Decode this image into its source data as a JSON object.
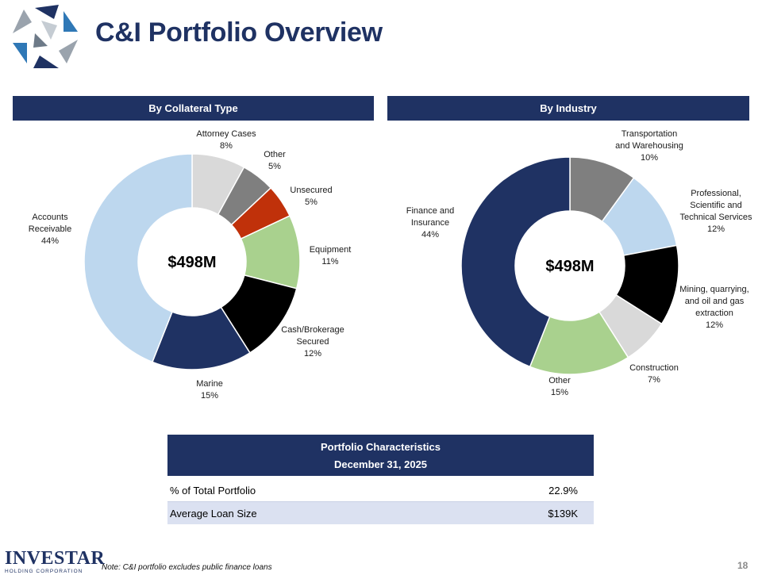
{
  "header": {
    "title": "C&I Portfolio Overview"
  },
  "sections": {
    "left_title": "By Collateral Type",
    "right_title": "By Industry"
  },
  "chart_data": [
    {
      "type": "pie",
      "title": "By Collateral Type",
      "center_label": "$498M",
      "slices": [
        {
          "name": "Attorney Cases",
          "lines": [
            "Attorney Cases",
            "8%"
          ],
          "value": 8,
          "color": "#d9d9d9"
        },
        {
          "name": "Other",
          "lines": [
            "Other",
            "5%"
          ],
          "value": 5,
          "color": "#7f7f7f"
        },
        {
          "name": "Unsecured",
          "lines": [
            "Unsecured",
            "5%"
          ],
          "value": 5,
          "color": "#c0310a"
        },
        {
          "name": "Equipment",
          "lines": [
            "Equipment",
            "11%"
          ],
          "value": 11,
          "color": "#a9d18e"
        },
        {
          "name": "Cash/Brokerage Secured",
          "lines": [
            "Cash/Brokerage",
            "Secured",
            "12%"
          ],
          "value": 12,
          "color": "#000000"
        },
        {
          "name": "Marine",
          "lines": [
            "Marine",
            "15%"
          ],
          "value": 15,
          "color": "#1f3263"
        },
        {
          "name": "Accounts Receivable",
          "lines": [
            "Accounts",
            "Receivable",
            "44%"
          ],
          "value": 44,
          "color": "#bdd7ee"
        }
      ]
    },
    {
      "type": "pie",
      "title": "By Industry",
      "center_label": "$498M",
      "slices": [
        {
          "name": "Transportation and Warehousing",
          "lines": [
            "Transportation",
            "and Warehousing",
            "10%"
          ],
          "value": 10,
          "color": "#7f7f7f"
        },
        {
          "name": "Professional, Scientific and Technical Services",
          "lines": [
            "Professional,",
            "Scientific and",
            "Technical Services",
            "12%"
          ],
          "value": 12,
          "color": "#bdd7ee"
        },
        {
          "name": "Mining, quarrying, and oil and gas extraction",
          "lines": [
            "Mining, quarrying,",
            "and oil and gas",
            "extraction",
            "12%"
          ],
          "value": 12,
          "color": "#000000"
        },
        {
          "name": "Construction",
          "lines": [
            "Construction",
            "7%"
          ],
          "value": 7,
          "color": "#d9d9d9"
        },
        {
          "name": "Other",
          "lines": [
            "Other",
            "15%"
          ],
          "value": 15,
          "color": "#a9d18e"
        },
        {
          "name": "Finance and Insurance",
          "lines": [
            "Finance and",
            "Insurance",
            "44%"
          ],
          "value": 44,
          "color": "#1f3263"
        }
      ]
    }
  ],
  "table": {
    "title": "Portfolio Characteristics",
    "date": "December 31, 2025",
    "rows": [
      {
        "label": "% of Total Portfolio",
        "value": "22.9%"
      },
      {
        "label": "Average Loan Size",
        "value": "$139K"
      }
    ]
  },
  "footer": {
    "brand_name": "INVESTAR",
    "brand_sub": "HOLDING CORPORATION",
    "note": "Note: C&I portfolio excludes public finance loans",
    "page_number": "18"
  }
}
